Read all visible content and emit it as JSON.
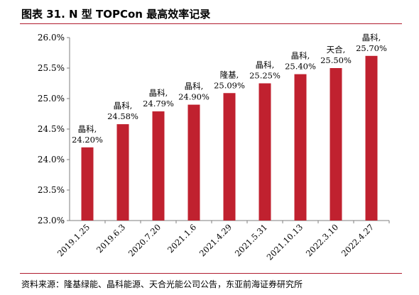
{
  "header": {
    "title": "图表 31. N 型 TOPCon 最高效率记录"
  },
  "footer": {
    "source": "资料来源：隆基绿能、晶科能源、天合光能公司公告，东亚前海证券研究所"
  },
  "colors": {
    "bar": "#c0212f",
    "rule": "#b01c2e",
    "axis": "#7f7f7f"
  },
  "chart_data": {
    "type": "bar",
    "title": "",
    "xlabel": "",
    "ylabel": "",
    "categories": [
      "2019.1.25",
      "2019.6.3",
      "2020.7.20",
      "2021.1.6",
      "2021.4.29",
      "2021.5.31",
      "2021.10.13",
      "2022.3.10",
      "2022.4.27"
    ],
    "values": [
      24.2,
      24.58,
      24.79,
      24.9,
      25.09,
      25.25,
      25.4,
      25.5,
      25.7
    ],
    "value_labels": [
      "24.20%",
      "24.58%",
      "24.79%",
      "24.90%",
      "25.09%",
      "25.25%",
      "25.40%",
      "25.50%",
      "25.70%"
    ],
    "companies": [
      "晶科,",
      "晶科,",
      "晶科,",
      "晶科,",
      "隆基,",
      "晶科,",
      "晶科,",
      "天合,",
      "晶科,"
    ],
    "yticks": [
      "23.0%",
      "23.5%",
      "24.0%",
      "24.5%",
      "25.0%",
      "25.5%",
      "26.0%"
    ],
    "ylim": [
      23.0,
      26.0
    ],
    "grid": false,
    "legend": "none"
  }
}
